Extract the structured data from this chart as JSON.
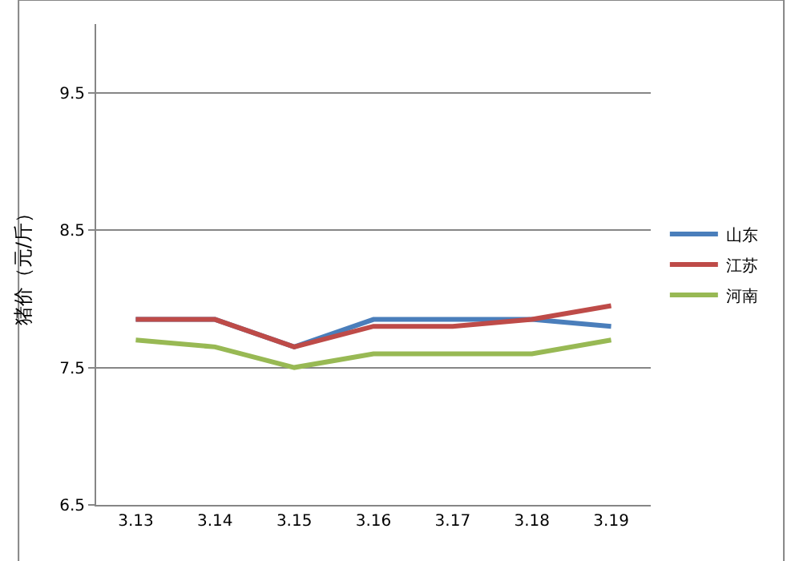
{
  "chart_data": {
    "type": "line",
    "ylabel": "猪价（元/斤）",
    "categories": [
      "3.13",
      "3.14",
      "3.15",
      "3.16",
      "3.17",
      "3.18",
      "3.19"
    ],
    "series": [
      {
        "name": "山东",
        "color": "#4a7ebb",
        "values": [
          7.85,
          7.85,
          7.65,
          7.85,
          7.85,
          7.85,
          7.8
        ]
      },
      {
        "name": "江苏",
        "color": "#be4b48",
        "values": [
          7.85,
          7.85,
          7.65,
          7.8,
          7.8,
          7.85,
          7.95
        ]
      },
      {
        "name": "河南",
        "color": "#98b954",
        "values": [
          7.7,
          7.65,
          7.5,
          7.6,
          7.6,
          7.6,
          7.7
        ]
      }
    ],
    "ylim": [
      6.5,
      10
    ],
    "yticks": [
      6.5,
      7.5,
      8.5,
      9.5
    ],
    "grid": "y",
    "legend": "right",
    "marker": "none",
    "line_style": "solid"
  }
}
